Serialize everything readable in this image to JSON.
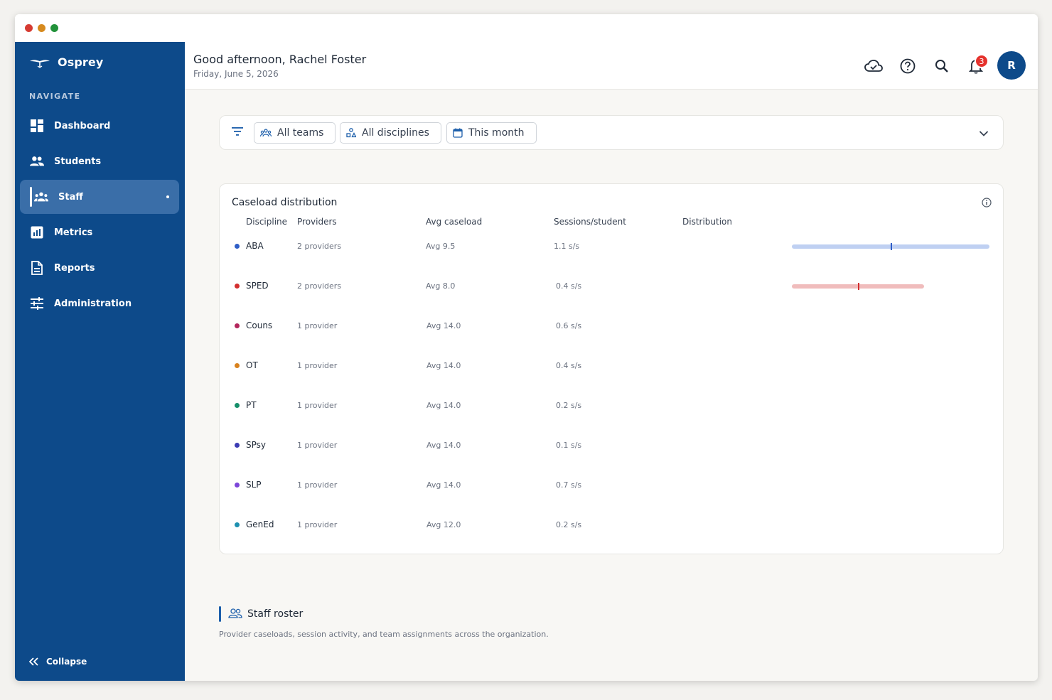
{
  "app": {
    "name": "Osprey"
  },
  "sidebar": {
    "heading": "NAVIGATE",
    "items": [
      {
        "label": "Dashboard",
        "icon": "dashboard-icon"
      },
      {
        "label": "Students",
        "icon": "students-icon"
      },
      {
        "label": "Staff",
        "icon": "staff-icon",
        "active": true
      },
      {
        "label": "Metrics",
        "icon": "metrics-icon"
      },
      {
        "label": "Reports",
        "icon": "reports-icon"
      },
      {
        "label": "Administration",
        "icon": "sliders-icon"
      }
    ],
    "collapse_label": "Collapse"
  },
  "header": {
    "greeting": "Good afternoon, Rachel Foster",
    "date": "Friday, June 5, 2026",
    "notification_count": "3",
    "avatar_initial": "R"
  },
  "filters": {
    "teams": "All teams",
    "disciplines": "All disciplines",
    "period": "This month"
  },
  "caseload": {
    "title": "Caseload distribution",
    "columns": {
      "discipline": "Discipline",
      "providers": "Providers",
      "avg_caseload": "Avg caseload",
      "sessions": "Sessions/student",
      "distribution": "Distribution"
    },
    "rows": [
      {
        "discipline": "ABA",
        "providers": "2 providers",
        "avg": "Avg 9.5",
        "sessions": "1.1 s/s",
        "color": "#2f5ec7",
        "track_color": "#bfd0f2",
        "mark_color": "#2f5ec7",
        "has_dist": true,
        "dist_span": 1.0,
        "dist_mark": 0.5
      },
      {
        "discipline": "SPED",
        "providers": "2 providers",
        "avg": "Avg 8.0",
        "sessions": "0.4 s/s",
        "color": "#d32f2f",
        "track_color": "#f0bcbc",
        "mark_color": "#d32f2f",
        "has_dist": true,
        "dist_span": 0.67,
        "dist_mark": 0.5
      },
      {
        "discipline": "Couns",
        "providers": "1 provider",
        "avg": "Avg 14.0",
        "sessions": "0.6 s/s",
        "color": "#b3265c",
        "has_dist": false
      },
      {
        "discipline": "OT",
        "providers": "1 provider",
        "avg": "Avg 14.0",
        "sessions": "0.4 s/s",
        "color": "#d9821e",
        "has_dist": false
      },
      {
        "discipline": "PT",
        "providers": "1 provider",
        "avg": "Avg 14.0",
        "sessions": "0.2 s/s",
        "color": "#168f6a",
        "has_dist": false
      },
      {
        "discipline": "SPsy",
        "providers": "1 provider",
        "avg": "Avg 14.0",
        "sessions": "0.1 s/s",
        "color": "#3b3bb3",
        "has_dist": false
      },
      {
        "discipline": "SLP",
        "providers": "1 provider",
        "avg": "Avg 14.0",
        "sessions": "0.7 s/s",
        "color": "#7c45d9",
        "has_dist": false
      },
      {
        "discipline": "GenEd",
        "providers": "1 provider",
        "avg": "Avg 12.0",
        "sessions": "0.2 s/s",
        "color": "#1d90b0",
        "has_dist": false
      }
    ]
  },
  "roster": {
    "title": "Staff roster",
    "description": "Provider caseloads, session activity, and team assignments across the organization."
  }
}
